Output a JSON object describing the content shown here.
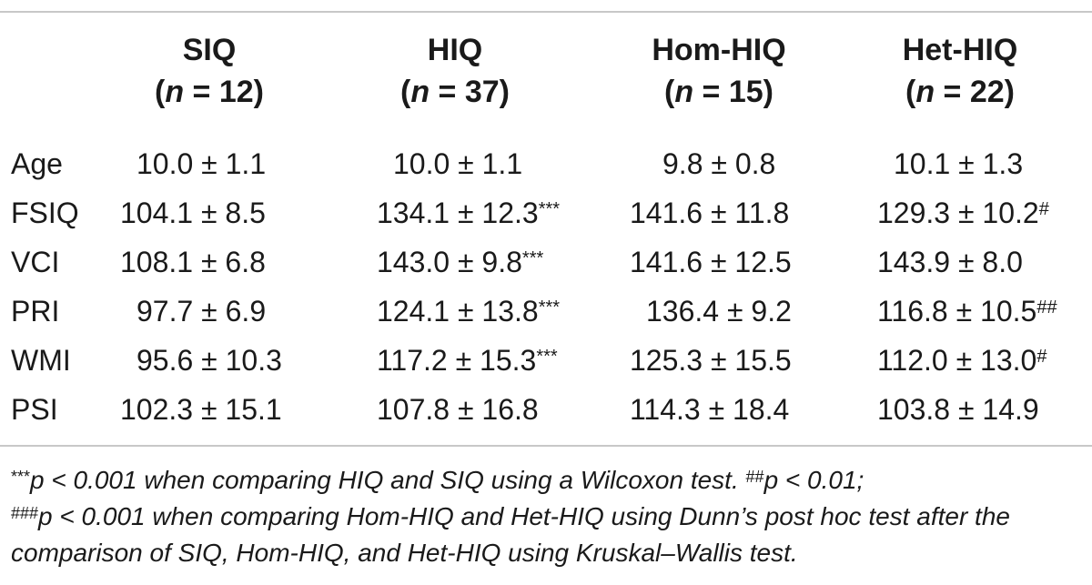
{
  "columns": [
    {
      "name": "SIQ",
      "n_label": "n",
      "n_value": " = 12)"
    },
    {
      "name": "HIQ",
      "n_label": "n",
      "n_value": " = 37)"
    },
    {
      "name": "Hom-HIQ",
      "n_label": "n",
      "n_value": " = 15)"
    },
    {
      "name": "Het-HIQ",
      "n_label": "n",
      "n_value": " = 22)"
    }
  ],
  "rows": [
    {
      "label": "Age",
      "cells": [
        [
          "10.0 ± 1.1",
          ""
        ],
        [
          "10.0 ± 1.1",
          ""
        ],
        [
          "9.8 ± 0.8",
          ""
        ],
        [
          "10.1 ± 1.3",
          ""
        ]
      ]
    },
    {
      "label": "FSIQ",
      "cells": [
        [
          "104.1 ± 8.5",
          ""
        ],
        [
          "134.1 ± 12.3",
          "***"
        ],
        [
          "141.6 ± 11.8",
          ""
        ],
        [
          "129.3 ± 10.2",
          "#"
        ]
      ]
    },
    {
      "label": "VCI",
      "cells": [
        [
          "108.1 ± 6.8",
          ""
        ],
        [
          "143.0 ± 9.8",
          "***"
        ],
        [
          "141.6 ± 12.5",
          ""
        ],
        [
          "143.9 ± 8.0",
          ""
        ]
      ]
    },
    {
      "label": "PRI",
      "cells": [
        [
          "97.7 ± 6.9",
          ""
        ],
        [
          "124.1 ± 13.8",
          "***"
        ],
        [
          "136.4 ± 9.2",
          ""
        ],
        [
          "116.8 ± 10.5",
          "##"
        ]
      ]
    },
    {
      "label": "WMI",
      "cells": [
        [
          "95.6 ± 10.3",
          ""
        ],
        [
          "117.2 ± 15.3",
          "***"
        ],
        [
          "125.3 ± 15.5",
          ""
        ],
        [
          "112.0 ± 13.0",
          "#"
        ]
      ]
    },
    {
      "label": "PSI",
      "cells": [
        [
          "102.3 ± 15.1",
          ""
        ],
        [
          "107.8 ± 16.8",
          ""
        ],
        [
          "114.3 ± 18.4",
          ""
        ],
        [
          "103.8 ± 14.9",
          ""
        ]
      ]
    }
  ],
  "footnote": {
    "mark1": "***",
    "text1": "p < 0.001 when comparing HIQ and SIQ using a Wilcoxon test. ",
    "mark2": "##",
    "text2": "p < 0.01;",
    "mark3": "###",
    "text3": "p < 0.001 when comparing Hom-HIQ and Het-HIQ using Dunn’s post hoc test after the comparison of SIQ, Hom-HIQ, and Het-HIQ using Kruskal–Wallis test."
  }
}
